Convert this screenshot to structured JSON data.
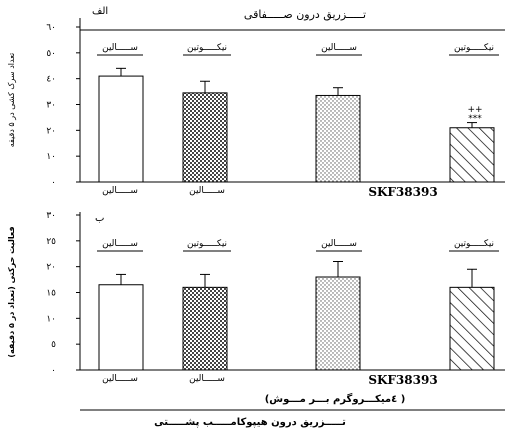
{
  "panels": {
    "a": {
      "letter": "الف",
      "header": "تـــــزریق درون صـــــفاقی"
    },
    "b": {
      "letter": "ب"
    }
  },
  "group_headers": {
    "saline": "ســـــالین",
    "nicotine": "نیکـــــوتین"
  },
  "axis_condition": {
    "saline": "ســـــالین",
    "skf": "SKF38393"
  },
  "annotation": {
    "plus": "++",
    "stars": "***"
  },
  "footer": {
    "dose": "(٤میکـــروگرم بـــر مـــوش )",
    "route": "تـــــزریق درون هیپوکامـــــب پشـــــتی"
  },
  "chart_data": [
    {
      "type": "bar",
      "panel": "a",
      "ylabel": "تعداد سرک کشی در ۵ دقیقه",
      "ylim": [
        0,
        60
      ],
      "yticks": [
        "٠",
        "١٠",
        "٢٠",
        "٣٠",
        "٤٠",
        "٥٠",
        "٦٠"
      ],
      "categories": [
        "saline/saline",
        "nicotine/saline",
        "saline/SKF38393",
        "nicotine/SKF38393"
      ],
      "values": [
        41,
        34.5,
        33.5,
        21
      ],
      "errors": [
        3,
        4.5,
        3,
        2
      ]
    },
    {
      "type": "bar",
      "panel": "b",
      "ylabel": "فعالیت حرکتی (تعداد در ۵ دقیقه)",
      "ylim": [
        0,
        30
      ],
      "yticks": [
        "٠",
        "٥",
        "١٠",
        "١٥",
        "٢٠",
        "٢٥",
        "٣٠"
      ],
      "categories": [
        "saline/saline",
        "nicotine/saline",
        "saline/SKF38393",
        "nicotine/SKF38393"
      ],
      "values": [
        16.5,
        16,
        18,
        16
      ],
      "errors": [
        2,
        2.5,
        3,
        3.5
      ]
    }
  ]
}
